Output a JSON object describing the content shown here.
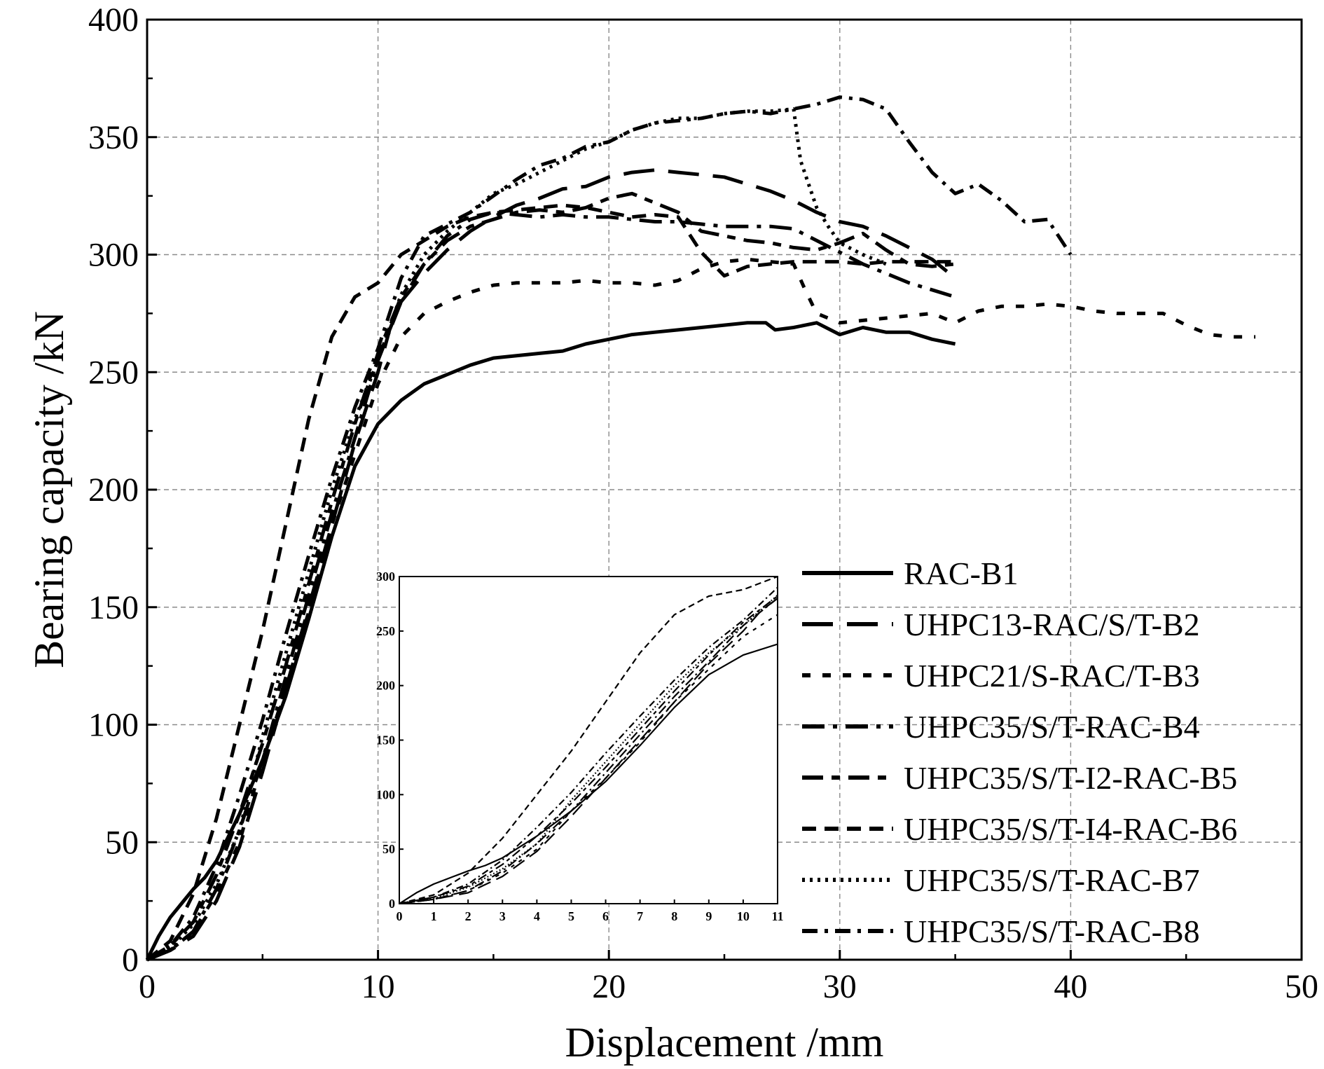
{
  "chart_data": [
    {
      "type": "line",
      "xlabel": "Displacement /mm",
      "ylabel": "Bearing capacity /kN",
      "xlim": [
        0,
        50
      ],
      "ylim": [
        0,
        400
      ],
      "xticks": [
        "0",
        "10",
        "20",
        "30",
        "40",
        "50"
      ],
      "yticks": [
        "0",
        "50",
        "100",
        "150",
        "200",
        "250",
        "300",
        "350",
        "400"
      ],
      "grid": true,
      "legend_position": "lower-right",
      "series": [
        {
          "name": "RAC-B1",
          "dash": "solid",
          "x": [
            0,
            0.5,
            1,
            1.5,
            2,
            2.5,
            3,
            3.5,
            4,
            5,
            6,
            7,
            8,
            9,
            10,
            11,
            12,
            13,
            14,
            15,
            16,
            17,
            18,
            19,
            20,
            21,
            22,
            23,
            24,
            25,
            26,
            26.8,
            27.2,
            28,
            29,
            30,
            31,
            32,
            33,
            34,
            35
          ],
          "y": [
            0,
            10,
            18,
            24,
            30,
            35,
            42,
            52,
            62,
            85,
            112,
            145,
            180,
            210,
            228,
            238,
            245,
            249,
            253,
            256,
            257,
            258,
            259,
            262,
            264,
            266,
            267,
            268,
            269,
            270,
            271,
            271,
            268,
            269,
            271,
            266,
            269,
            267,
            267,
            264,
            262
          ]
        },
        {
          "name": "UHPC13-RAC/S/T-B2",
          "dash": "longdash",
          "x": [
            0,
            1,
            2,
            3,
            4,
            5,
            6,
            7,
            8,
            9,
            10,
            10.5,
            11,
            12,
            13,
            14,
            15,
            16,
            17,
            18,
            19,
            20,
            21,
            22,
            23,
            24,
            25,
            26,
            27,
            28,
            29,
            30,
            31,
            32,
            33,
            34,
            35
          ],
          "y": [
            0,
            4,
            10,
            25,
            48,
            80,
            115,
            150,
            185,
            220,
            250,
            268,
            280,
            292,
            302,
            310,
            316,
            321,
            324,
            328,
            329,
            333,
            335,
            336,
            335,
            334,
            333,
            330,
            327,
            323,
            318,
            314,
            312,
            308,
            303,
            298,
            290
          ]
        },
        {
          "name": "UHPC21/S-RAC/T-B3",
          "dash": "dash",
          "x": [
            0,
            1,
            2,
            3,
            4,
            5,
            6,
            7,
            8,
            9,
            10,
            11,
            12,
            13,
            14,
            15,
            16,
            17,
            18,
            19,
            20,
            21,
            22,
            23,
            24,
            25,
            26,
            27,
            28,
            28.5,
            29,
            30,
            31,
            32,
            33,
            34,
            35,
            36,
            37,
            38,
            39,
            40,
            41,
            42,
            43,
            44,
            45,
            46,
            47,
            48
          ],
          "y": [
            0,
            4,
            12,
            28,
            50,
            85,
            115,
            148,
            185,
            215,
            245,
            265,
            275,
            280,
            284,
            287,
            288,
            288,
            288,
            289,
            288,
            288,
            287,
            289,
            294,
            297,
            298,
            297,
            296,
            285,
            275,
            271,
            272,
            273,
            274,
            275,
            271,
            276,
            278,
            278,
            279,
            278,
            276,
            275,
            275,
            275,
            270,
            266,
            265,
            265
          ]
        },
        {
          "name": "UHPC35/S/T-RAC-B4",
          "dash": "longdashdot",
          "x": [
            0,
            1,
            2,
            3,
            4,
            5,
            6,
            7,
            8,
            9,
            10,
            11,
            12,
            13,
            14,
            15,
            16,
            17,
            18,
            19,
            20,
            21,
            22,
            23,
            24,
            25,
            26,
            27,
            28,
            29,
            30,
            31,
            32,
            33,
            34,
            35
          ],
          "y": [
            0,
            4,
            12,
            30,
            55,
            85,
            120,
            155,
            190,
            222,
            255,
            280,
            296,
            308,
            315,
            318,
            317,
            316,
            317,
            316,
            316,
            315,
            314,
            314,
            313,
            312,
            312,
            312,
            311,
            306,
            301,
            296,
            292,
            288,
            285,
            282
          ]
        },
        {
          "name": "UHPC35/S/T-I2-RAC-B5",
          "dash": "longdashshort",
          "x": [
            0,
            1,
            2,
            3,
            4,
            5,
            6,
            7,
            8,
            9,
            10,
            11,
            12,
            13,
            14,
            15,
            16,
            17,
            18,
            19,
            20,
            21,
            22,
            23,
            24,
            25,
            26,
            27,
            28,
            29,
            30,
            31,
            32,
            33,
            34,
            35
          ],
          "y": [
            0,
            6,
            16,
            36,
            62,
            92,
            125,
            160,
            195,
            228,
            258,
            282,
            296,
            306,
            312,
            315,
            318,
            319,
            318,
            320,
            324,
            326,
            322,
            318,
            310,
            308,
            306,
            305,
            303,
            302,
            305,
            309,
            302,
            296,
            295,
            296
          ]
        },
        {
          "name": "UHPC35/S/T-I4-RAC-B6",
          "dash": "dashed",
          "x": [
            0,
            1,
            2,
            3,
            4,
            5,
            6,
            7,
            8,
            9,
            10,
            11,
            12,
            13,
            14,
            15,
            16,
            17,
            18,
            19,
            20,
            21,
            22,
            23,
            24,
            25,
            26,
            27,
            28,
            29,
            30,
            31,
            32,
            33,
            34,
            35
          ],
          "y": [
            0,
            8,
            28,
            60,
            100,
            140,
            185,
            230,
            265,
            282,
            288,
            300,
            306,
            312,
            316,
            318,
            319,
            320,
            321,
            320,
            318,
            316,
            317,
            316,
            301,
            291,
            295,
            296,
            297,
            297,
            297,
            296,
            297,
            297,
            297,
            297
          ]
        },
        {
          "name": "UHPC35/S/T-RAC-B7",
          "dash": "dotted",
          "x": [
            0,
            1,
            2,
            3,
            4,
            5,
            6,
            7,
            8,
            9,
            10,
            11,
            12,
            13,
            14,
            15,
            16,
            17,
            18,
            19,
            20,
            21,
            22,
            23,
            24,
            25,
            26,
            27,
            28,
            28.3,
            29,
            29.5,
            30,
            31,
            32
          ],
          "y": [
            0,
            5,
            15,
            32,
            55,
            95,
            130,
            165,
            200,
            230,
            255,
            283,
            300,
            310,
            318,
            326,
            330,
            335,
            340,
            345,
            348,
            353,
            356,
            358,
            358,
            360,
            361,
            361,
            362,
            340,
            320,
            312,
            305,
            300,
            296
          ]
        },
        {
          "name": "UHPC35/S/T-RAC-B8",
          "dash": "dashdot",
          "x": [
            0,
            1,
            2,
            3,
            4,
            5,
            6,
            7,
            8,
            9,
            10,
            11,
            12,
            13,
            14,
            15,
            16,
            17,
            18,
            19,
            20,
            21,
            22,
            23,
            24,
            25,
            26,
            27,
            28,
            29,
            30,
            31,
            32,
            33,
            34,
            35,
            36,
            37,
            38,
            39,
            40
          ],
          "y": [
            0,
            6,
            18,
            40,
            70,
            102,
            138,
            172,
            205,
            235,
            260,
            290,
            308,
            313,
            318,
            325,
            332,
            338,
            341,
            346,
            348,
            353,
            356,
            357,
            358,
            360,
            361,
            360,
            362,
            364,
            367,
            366,
            362,
            348,
            335,
            326,
            330,
            323,
            314,
            315,
            300
          ]
        }
      ]
    },
    {
      "type": "line",
      "role": "inset",
      "xlim": [
        0,
        11
      ],
      "ylim": [
        0,
        300
      ],
      "xticks": [
        "0",
        "1",
        "2",
        "3",
        "4",
        "5",
        "6",
        "7",
        "8",
        "9",
        "10",
        "11"
      ],
      "yticks": [
        "0",
        "50",
        "100",
        "150",
        "200",
        "250",
        "300"
      ]
    }
  ]
}
